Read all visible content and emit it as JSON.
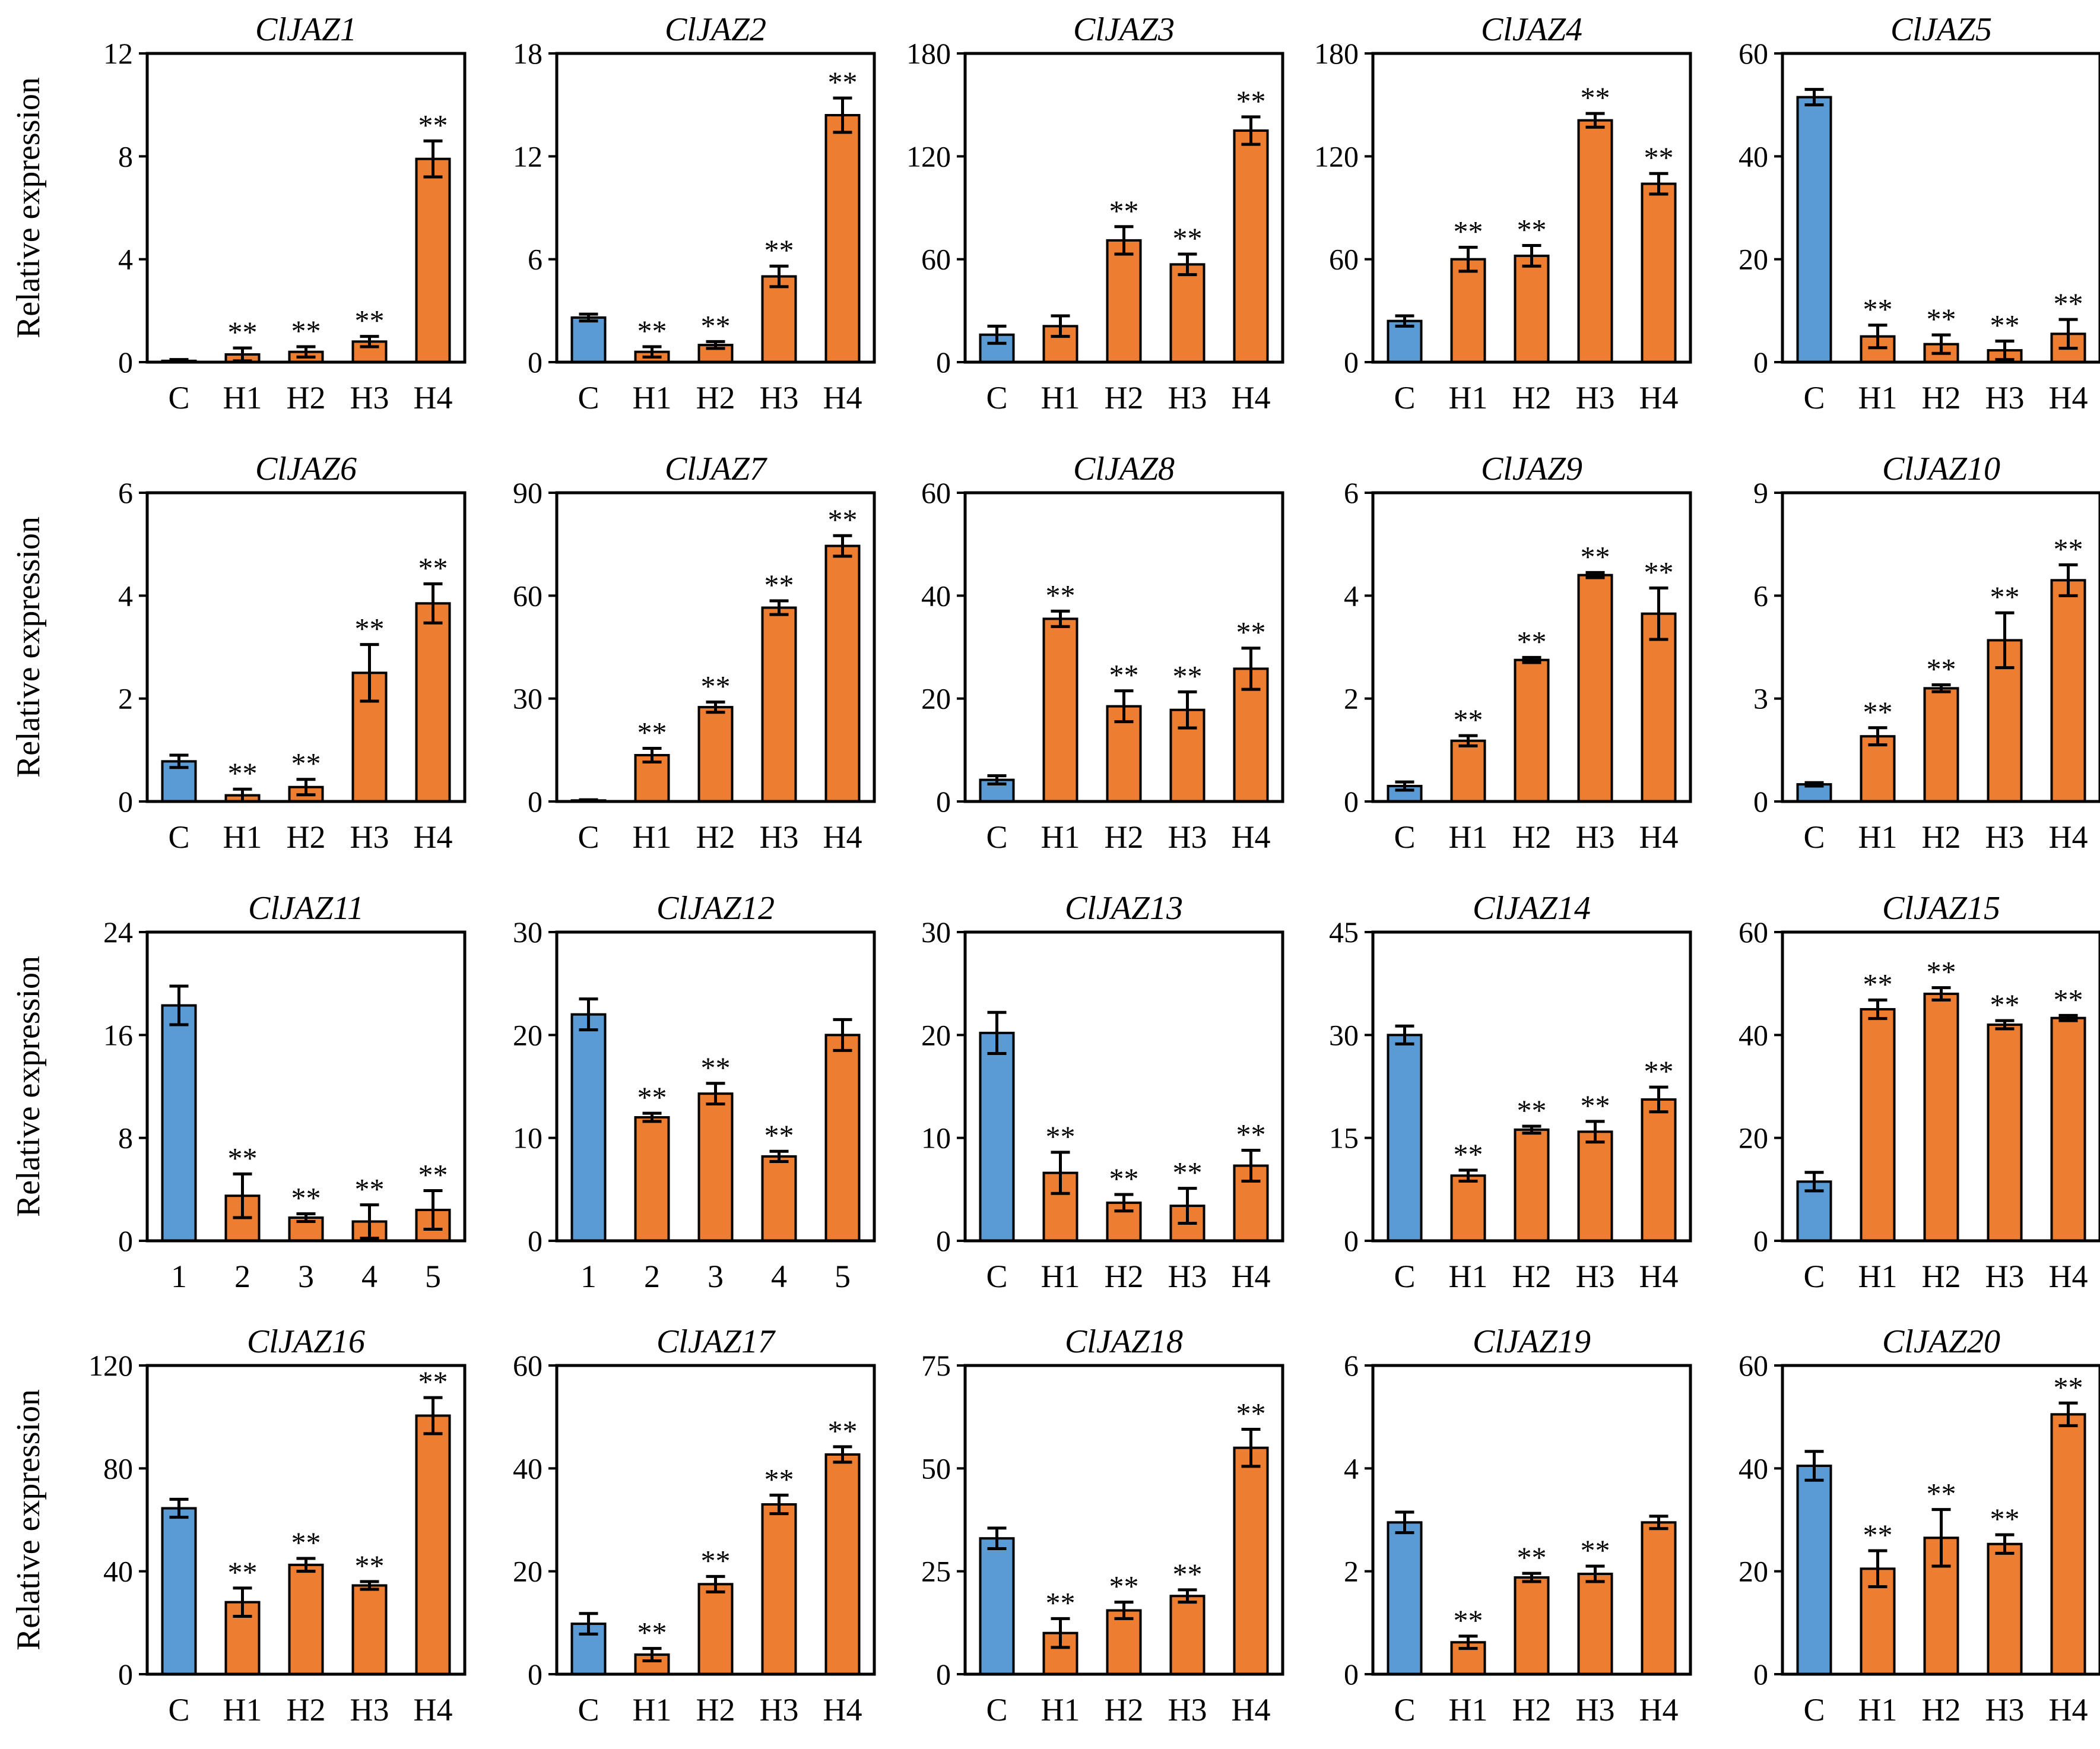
{
  "figure": {
    "ylabel": "Relative expression",
    "colors": {
      "control": "#5b9bd5",
      "treatment": "#ed7d31",
      "axis": "#000000"
    }
  },
  "chart_data": [
    {
      "type": "bar",
      "title": "ClJAZ1",
      "categories": [
        "C",
        "H1",
        "H2",
        "H3",
        "H4"
      ],
      "values": [
        0.05,
        0.3,
        0.4,
        0.8,
        7.9
      ],
      "errors": [
        0.05,
        0.25,
        0.2,
        0.2,
        0.7
      ],
      "significance": [
        "",
        "**",
        "**",
        "**",
        "**"
      ],
      "yticks": [
        "0",
        "4",
        "8",
        "12"
      ],
      "ylim": [
        0,
        12
      ]
    },
    {
      "type": "bar",
      "title": "ClJAZ2",
      "categories": [
        "C",
        "H1",
        "H2",
        "H3",
        "H4"
      ],
      "values": [
        2.6,
        0.6,
        1.0,
        5.0,
        14.4
      ],
      "errors": [
        0.2,
        0.3,
        0.2,
        0.6,
        1.0
      ],
      "significance": [
        "",
        "**",
        "**",
        "**",
        "**"
      ],
      "yticks": [
        "0",
        "6",
        "12",
        "18"
      ],
      "ylim": [
        0,
        18
      ]
    },
    {
      "type": "bar",
      "title": "ClJAZ3",
      "categories": [
        "C",
        "H1",
        "H2",
        "H3",
        "H4"
      ],
      "values": [
        16,
        21,
        71,
        57,
        135
      ],
      "errors": [
        5,
        6,
        8,
        6,
        8
      ],
      "significance": [
        "",
        "",
        "**",
        "**",
        "**"
      ],
      "yticks": [
        "0",
        "60",
        "120",
        "180"
      ],
      "ylim": [
        0,
        180
      ]
    },
    {
      "type": "bar",
      "title": "ClJAZ4",
      "categories": [
        "C",
        "H1",
        "H2",
        "H3",
        "H4"
      ],
      "values": [
        24,
        60,
        62,
        141,
        104
      ],
      "errors": [
        3,
        7,
        6,
        4,
        6
      ],
      "significance": [
        "",
        "**",
        "**",
        "**",
        "**"
      ],
      "yticks": [
        "0",
        "60",
        "120",
        "180"
      ],
      "ylim": [
        0,
        180
      ]
    },
    {
      "type": "bar",
      "title": "ClJAZ5",
      "categories": [
        "C",
        "H1",
        "H2",
        "H3",
        "H4"
      ],
      "values": [
        51.5,
        5,
        3.5,
        2.3,
        5.5
      ],
      "errors": [
        1.5,
        2.2,
        1.8,
        1.8,
        2.8
      ],
      "significance": [
        "",
        "**",
        "**",
        "**",
        "**"
      ],
      "yticks": [
        "0",
        "20",
        "40",
        "60"
      ],
      "ylim": [
        0,
        60
      ]
    },
    {
      "type": "bar",
      "title": "ClJAZ6",
      "categories": [
        "C",
        "H1",
        "H2",
        "H3",
        "H4"
      ],
      "values": [
        0.78,
        0.12,
        0.28,
        2.5,
        3.85
      ],
      "errors": [
        0.12,
        0.12,
        0.15,
        0.55,
        0.38
      ],
      "significance": [
        "",
        "**",
        "**",
        "**",
        "**"
      ],
      "yticks": [
        "0",
        "2",
        "4",
        "6"
      ],
      "ylim": [
        0,
        6
      ]
    },
    {
      "type": "bar",
      "title": "ClJAZ7",
      "categories": [
        "C",
        "H1",
        "H2",
        "H3",
        "H4"
      ],
      "values": [
        0.3,
        13.5,
        27.5,
        56.5,
        74.5
      ],
      "errors": [
        0.2,
        2,
        1.5,
        2,
        3
      ],
      "significance": [
        "",
        "**",
        "**",
        "**",
        "**"
      ],
      "yticks": [
        "0",
        "30",
        "60",
        "90"
      ],
      "ylim": [
        0,
        90
      ]
    },
    {
      "type": "bar",
      "title": "ClJAZ8",
      "categories": [
        "C",
        "H1",
        "H2",
        "H3",
        "H4"
      ],
      "values": [
        4.2,
        35.5,
        18.5,
        17.8,
        25.8
      ],
      "errors": [
        0.8,
        1.5,
        3,
        3.5,
        4
      ],
      "significance": [
        "",
        "**",
        "**",
        "**",
        "**"
      ],
      "yticks": [
        "0",
        "20",
        "40",
        "60"
      ],
      "ylim": [
        0,
        60
      ]
    },
    {
      "type": "bar",
      "title": "ClJAZ9",
      "categories": [
        "C",
        "H1",
        "H2",
        "H3",
        "H4"
      ],
      "values": [
        0.3,
        1.18,
        2.75,
        4.4,
        3.65
      ],
      "errors": [
        0.08,
        0.1,
        0.05,
        0.05,
        0.5
      ],
      "significance": [
        "",
        "**",
        "**",
        "**",
        "**"
      ],
      "yticks": [
        "0",
        "2",
        "4",
        "6"
      ],
      "ylim": [
        0,
        6
      ]
    },
    {
      "type": "bar",
      "title": "ClJAZ10",
      "categories": [
        "C",
        "H1",
        "H2",
        "H3",
        "H4"
      ],
      "values": [
        0.5,
        1.9,
        3.3,
        4.7,
        6.45
      ],
      "errors": [
        0.05,
        0.25,
        0.1,
        0.8,
        0.45
      ],
      "significance": [
        "",
        "**",
        "**",
        "**",
        "**"
      ],
      "yticks": [
        "0",
        "3",
        "6",
        "9"
      ],
      "ylim": [
        0,
        9
      ]
    },
    {
      "type": "bar",
      "title": "ClJAZ11",
      "categories": [
        "1",
        "2",
        "3",
        "4",
        "5"
      ],
      "values": [
        18.3,
        3.5,
        1.8,
        1.5,
        2.4
      ],
      "errors": [
        1.5,
        1.7,
        0.3,
        1.3,
        1.5
      ],
      "significance": [
        "",
        "**",
        "**",
        "**",
        "**"
      ],
      "yticks": [
        "0",
        "8",
        "16",
        "24"
      ],
      "ylim": [
        0,
        24
      ]
    },
    {
      "type": "bar",
      "title": "ClJAZ12",
      "categories": [
        "1",
        "2",
        "3",
        "4",
        "5"
      ],
      "values": [
        22,
        12,
        14.3,
        8.2,
        20
      ],
      "errors": [
        1.5,
        0.4,
        1,
        0.5,
        1.5
      ],
      "significance": [
        "",
        "**",
        "**",
        "**",
        ""
      ],
      "yticks": [
        "0",
        "10",
        "20",
        "30"
      ],
      "ylim": [
        0,
        30
      ]
    },
    {
      "type": "bar",
      "title": "ClJAZ13",
      "categories": [
        "C",
        "H1",
        "H2",
        "H3",
        "H4"
      ],
      "values": [
        20.2,
        6.6,
        3.7,
        3.4,
        7.3
      ],
      "errors": [
        2,
        2,
        0.8,
        1.7,
        1.5
      ],
      "significance": [
        "",
        "**",
        "**",
        "**",
        "**"
      ],
      "yticks": [
        "0",
        "10",
        "20",
        "30"
      ],
      "ylim": [
        0,
        30
      ]
    },
    {
      "type": "bar",
      "title": "ClJAZ14",
      "categories": [
        "C",
        "H1",
        "H2",
        "H3",
        "H4"
      ],
      "values": [
        30,
        9.5,
        16.2,
        15.9,
        20.6
      ],
      "errors": [
        1.3,
        0.8,
        0.5,
        1.5,
        1.8
      ],
      "significance": [
        "",
        "**",
        "**",
        "**",
        "**"
      ],
      "yticks": [
        "0",
        "15",
        "30",
        "45"
      ],
      "ylim": [
        0,
        45
      ]
    },
    {
      "type": "bar",
      "title": "ClJAZ15",
      "categories": [
        "C",
        "H1",
        "H2",
        "H3",
        "H4"
      ],
      "values": [
        11.5,
        45,
        48,
        42,
        43.3
      ],
      "errors": [
        1.8,
        1.8,
        1.2,
        0.8,
        0.5
      ],
      "significance": [
        "",
        "**",
        "**",
        "**",
        "**"
      ],
      "yticks": [
        "0",
        "20",
        "40",
        "60"
      ],
      "ylim": [
        0,
        60
      ]
    },
    {
      "type": "bar",
      "title": "ClJAZ16",
      "categories": [
        "C",
        "H1",
        "H2",
        "H3",
        "H4"
      ],
      "values": [
        64.5,
        28,
        42.5,
        34.5,
        100.5
      ],
      "errors": [
        3.5,
        5.5,
        2.5,
        1.5,
        7
      ],
      "significance": [
        "",
        "**",
        "**",
        "**",
        "**"
      ],
      "yticks": [
        "0",
        "40",
        "80",
        "120"
      ],
      "ylim": [
        0,
        120
      ]
    },
    {
      "type": "bar",
      "title": "ClJAZ17",
      "categories": [
        "C",
        "H1",
        "H2",
        "H3",
        "H4"
      ],
      "values": [
        9.8,
        3.8,
        17.5,
        33,
        42.7
      ],
      "errors": [
        2,
        1.2,
        1.5,
        1.8,
        1.5
      ],
      "significance": [
        "",
        "**",
        "**",
        "**",
        "**"
      ],
      "yticks": [
        "0",
        "20",
        "40",
        "60"
      ],
      "ylim": [
        0,
        60
      ]
    },
    {
      "type": "bar",
      "title": "ClJAZ18",
      "categories": [
        "C",
        "H1",
        "H2",
        "H3",
        "H4"
      ],
      "values": [
        33,
        10,
        15.5,
        19,
        55
      ],
      "errors": [
        2.5,
        3.5,
        2,
        1.5,
        4.5
      ],
      "significance": [
        "",
        "**",
        "**",
        "**",
        "**"
      ],
      "yticks": [
        "0",
        "25",
        "50",
        "75"
      ],
      "ylim": [
        0,
        75
      ]
    },
    {
      "type": "bar",
      "title": "ClJAZ19",
      "categories": [
        "C",
        "H1",
        "H2",
        "H3",
        "H4"
      ],
      "values": [
        2.95,
        0.62,
        1.88,
        1.95,
        2.95
      ],
      "errors": [
        0.2,
        0.12,
        0.08,
        0.15,
        0.12
      ],
      "significance": [
        "",
        "**",
        "**",
        "**",
        ""
      ],
      "yticks": [
        "0",
        "2",
        "4",
        "6"
      ],
      "ylim": [
        0,
        6
      ]
    },
    {
      "type": "bar",
      "title": "ClJAZ20",
      "categories": [
        "C",
        "H1",
        "H2",
        "H3",
        "H4"
      ],
      "values": [
        40.5,
        20.5,
        26.5,
        25.3,
        50.5
      ],
      "errors": [
        2.8,
        3.5,
        5.5,
        1.8,
        2.2
      ],
      "significance": [
        "",
        "**",
        "**",
        "**",
        "**"
      ],
      "yticks": [
        "0",
        "20",
        "40",
        "60"
      ],
      "ylim": [
        0,
        60
      ]
    }
  ]
}
